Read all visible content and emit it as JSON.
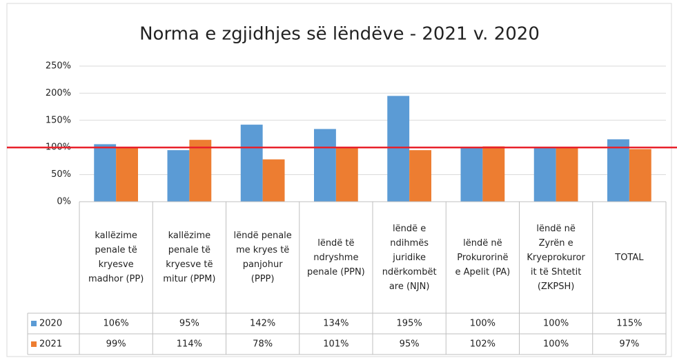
{
  "chart_data": {
    "type": "bar",
    "title": "Norma e zgjidhjes së lëndëve - 2021 v. 2020",
    "categories": [
      "kallëzime penale të kryesve madhor (PP)",
      "kallëzime penale të kryesve të mitur (PPM)",
      "lëndë penale me kryes të panjohur (PPP)",
      "lëndë të ndryshme penale (PPN)",
      "lëndë e ndihmës juridike ndërkombëtare (NJN)",
      "lëndë në Prokurorinë e Apelit (PA)",
      "lëndë në Zyrën e Kryeprokurorit të Shtetit (ZKPSH)",
      "TOTAL"
    ],
    "series": [
      {
        "name": "2020",
        "color": "#5b9bd5",
        "values": [
          106,
          95,
          142,
          134,
          195,
          100,
          100,
          115
        ],
        "value_labels": [
          "106%",
          "95%",
          "142%",
          "134%",
          "195%",
          "100%",
          "100%",
          "115%"
        ]
      },
      {
        "name": "2021",
        "color": "#ed7d31",
        "values": [
          99,
          114,
          78,
          101,
          95,
          102,
          100,
          97
        ],
        "value_labels": [
          "99%",
          "114%",
          "78%",
          "101%",
          "95%",
          "102%",
          "100%",
          "97%"
        ]
      }
    ],
    "ylim": [
      0,
      250
    ],
    "yticks": [
      {
        "value": 0,
        "label": "0%"
      },
      {
        "value": 50,
        "label": "50%"
      },
      {
        "value": 100,
        "label": "100%"
      },
      {
        "value": 150,
        "label": "150%"
      },
      {
        "value": 200,
        "label": "200%"
      },
      {
        "value": 250,
        "label": "250%"
      }
    ],
    "grid": true,
    "reference_line": {
      "value": 100,
      "color": "#e8202a"
    },
    "data_table": true
  }
}
